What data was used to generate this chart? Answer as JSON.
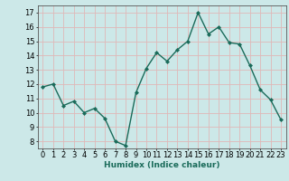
{
  "x": [
    0,
    1,
    2,
    3,
    4,
    5,
    6,
    7,
    8,
    9,
    10,
    11,
    12,
    13,
    14,
    15,
    16,
    17,
    18,
    19,
    20,
    21,
    22,
    23
  ],
  "y": [
    11.8,
    12.0,
    10.5,
    10.8,
    10.0,
    10.3,
    9.6,
    8.0,
    7.7,
    11.4,
    13.1,
    14.2,
    13.6,
    14.4,
    15.0,
    17.0,
    15.5,
    16.0,
    14.9,
    14.8,
    13.3,
    11.6,
    10.9,
    9.5
  ],
  "line_color": "#1a6b5a",
  "marker": "D",
  "marker_size": 2.0,
  "bg_color": "#cce8e8",
  "grid_color": "#e0b8b8",
  "xlabel": "Humidex (Indice chaleur)",
  "xlim": [
    -0.5,
    23.5
  ],
  "ylim": [
    7.5,
    17.5
  ],
  "yticks": [
    8,
    9,
    10,
    11,
    12,
    13,
    14,
    15,
    16,
    17
  ],
  "xticks": [
    0,
    1,
    2,
    3,
    4,
    5,
    6,
    7,
    8,
    9,
    10,
    11,
    12,
    13,
    14,
    15,
    16,
    17,
    18,
    19,
    20,
    21,
    22,
    23
  ],
  "xlabel_fontsize": 6.5,
  "tick_fontsize": 6.0,
  "line_width": 1.0
}
